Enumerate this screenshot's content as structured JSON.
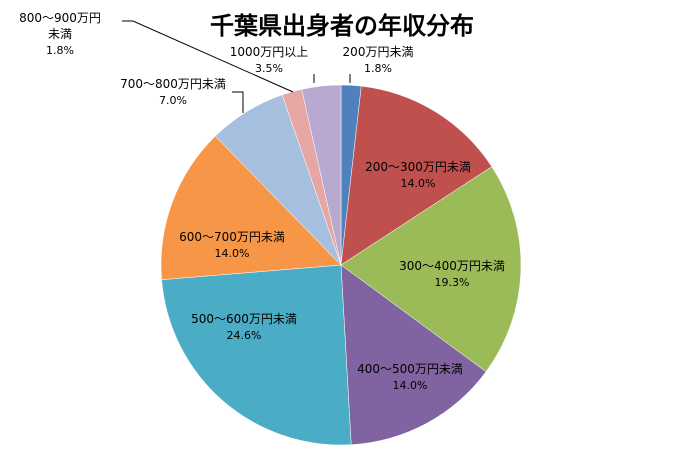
{
  "chart_data": {
    "type": "pie",
    "title": "千葉県出身者の年収分布",
    "slices": [
      {
        "label": "200万円未満",
        "value": 1.8,
        "value_label": "1.8%",
        "color": "#4F81BD"
      },
      {
        "label": "200～300万円未満",
        "value": 14.0,
        "value_label": "14.0%",
        "color": "#C0504D"
      },
      {
        "label": "300～400万円未満",
        "value": 19.3,
        "value_label": "19.3%",
        "color": "#9BBB59"
      },
      {
        "label": "400～500万円未満",
        "value": 14.0,
        "value_label": "14.0%",
        "color": "#8064A2"
      },
      {
        "label": "500～600万円未満",
        "value": 24.6,
        "value_label": "24.6%",
        "color": "#4BACC6"
      },
      {
        "label": "600～700万円未満",
        "value": 14.0,
        "value_label": "14.0%",
        "color": "#F79646"
      },
      {
        "label": "700～800万円未満",
        "value": 7.0,
        "value_label": "7.0%",
        "color": "#A7BFDE"
      },
      {
        "label": "800～900万円\n未満",
        "value": 1.8,
        "value_label": "1.8%",
        "color": "#E6A6A4"
      },
      {
        "label": "1000万円以上",
        "value": 3.5,
        "value_label": "3.5%",
        "color": "#B7A9CF"
      }
    ]
  }
}
